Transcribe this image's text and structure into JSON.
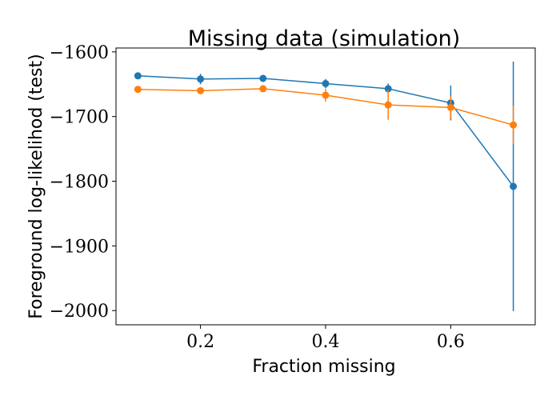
{
  "chart_data": {
    "type": "line",
    "title": "Missing data (simulation)",
    "xlabel": "Fraction missing",
    "ylabel": "Foreground log-likelihod (test)",
    "xlim": [
      0.065,
      0.735
    ],
    "ylim": [
      -2022,
      -1594
    ],
    "xticks": [
      0.2,
      0.4,
      0.6
    ],
    "xtick_labels": [
      "0.2",
      "0.4",
      "0.6"
    ],
    "yticks": [
      -1600,
      -1700,
      -1800,
      -1900,
      -2000
    ],
    "ytick_labels": [
      "−1600",
      "−1700",
      "−1800",
      "−1900",
      "−2000"
    ],
    "grid": false,
    "x": [
      0.1,
      0.2,
      0.3,
      0.4,
      0.5,
      0.6,
      0.7
    ],
    "series": [
      {
        "color": "#1f77b4",
        "values": [
          -1637,
          -1642,
          -1641,
          -1649,
          -1657,
          -1679,
          -1808
        ],
        "errors": [
          2,
          8,
          2,
          7,
          8,
          27,
          193
        ]
      },
      {
        "color": "#ff7f0e",
        "values": [
          -1658,
          -1660,
          -1657,
          -1667,
          -1682,
          -1686,
          -1713
        ],
        "errors": [
          2,
          2,
          2,
          10,
          23,
          18,
          30
        ]
      }
    ]
  }
}
